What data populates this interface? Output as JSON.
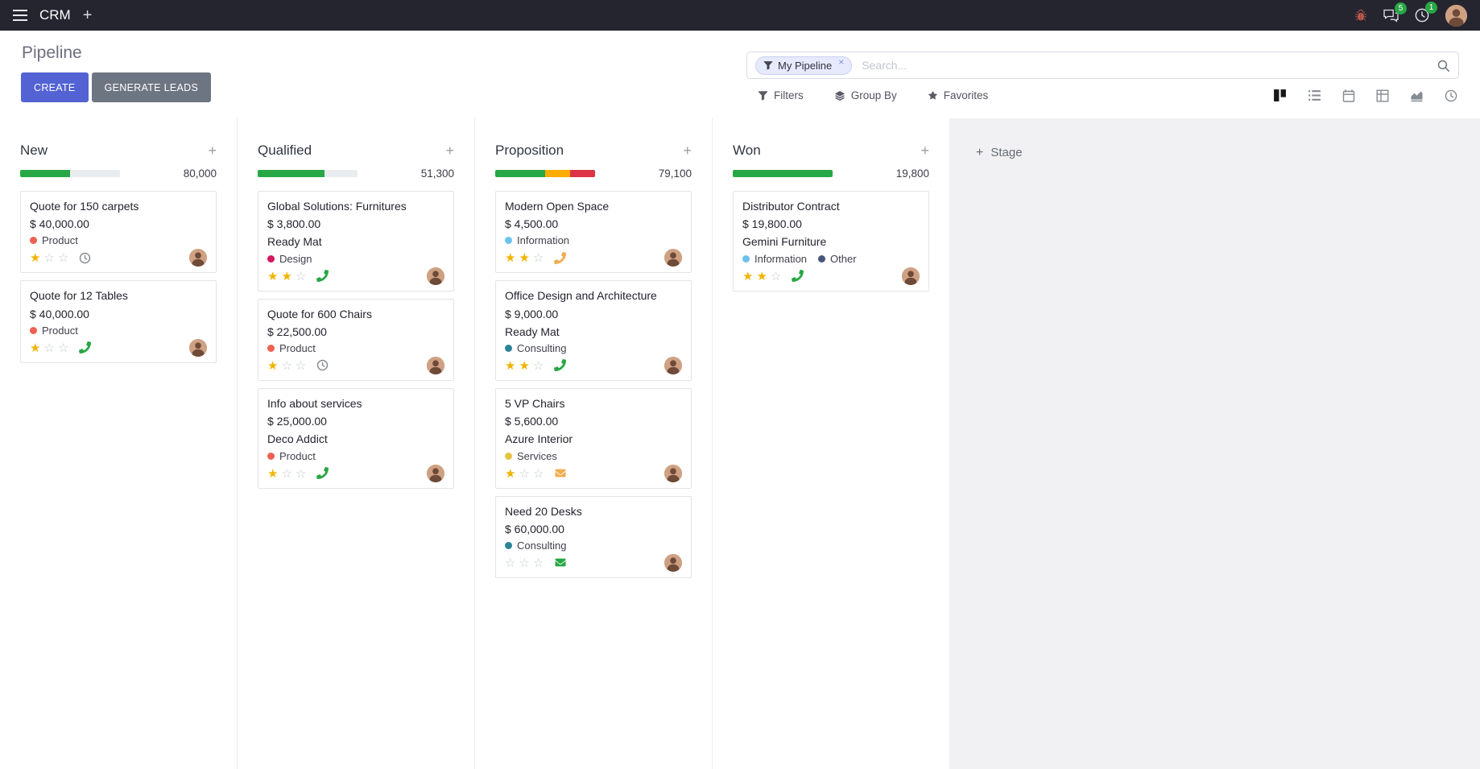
{
  "icons": {
    "plus": "+",
    "close": "×",
    "star_filled": "★",
    "star_empty": "☆"
  },
  "topbar": {
    "app_name": "CRM",
    "messages_badge": "5",
    "activities_badge": "1"
  },
  "control_panel": {
    "title": "Pipeline",
    "buttons": {
      "create": "CREATE",
      "generate_leads": "GENERATE LEADS"
    },
    "search": {
      "facet_label": "My Pipeline",
      "placeholder": "Search..."
    },
    "menus": [
      {
        "label": "Filters"
      },
      {
        "label": "Group By"
      },
      {
        "label": "Favorites"
      }
    ]
  },
  "board": {
    "add_stage_label": "Stage",
    "columns": [
      {
        "name": "New",
        "total": "80,000",
        "progress": [
          {
            "color": "#28a745",
            "pct": 50
          }
        ],
        "cards": [
          {
            "title": "Quote for 150 carpets",
            "amount": "$ 40,000.00",
            "partner": "",
            "tags": [
              {
                "label": "Product",
                "color": "#F06050"
              }
            ],
            "stars": 1,
            "activity": {
              "icon": "clock",
              "color": "#8a8f98"
            }
          },
          {
            "title": "Quote for 12 Tables",
            "amount": "$ 40,000.00",
            "partner": "",
            "tags": [
              {
                "label": "Product",
                "color": "#F06050"
              }
            ],
            "stars": 1,
            "activity": {
              "icon": "phone",
              "color": "#28a745"
            }
          }
        ]
      },
      {
        "name": "Qualified",
        "total": "51,300",
        "progress": [
          {
            "color": "#28a745",
            "pct": 66.7
          }
        ],
        "cards": [
          {
            "title": "Global Solutions: Furnitures",
            "amount": "$ 3,800.00",
            "partner": "Ready Mat",
            "tags": [
              {
                "label": "Design",
                "color": "#D6145F"
              }
            ],
            "stars": 2,
            "activity": {
              "icon": "phone",
              "color": "#28a745"
            }
          },
          {
            "title": "Quote for 600 Chairs",
            "amount": "$ 22,500.00",
            "partner": "",
            "tags": [
              {
                "label": "Product",
                "color": "#F06050"
              }
            ],
            "stars": 1,
            "activity": {
              "icon": "clock",
              "color": "#8a8f98"
            }
          },
          {
            "title": "Info about services",
            "amount": "$ 25,000.00",
            "partner": "Deco Addict",
            "tags": [
              {
                "label": "Product",
                "color": "#F06050"
              }
            ],
            "stars": 1,
            "activity": {
              "icon": "phone",
              "color": "#28a745"
            }
          }
        ]
      },
      {
        "name": "Proposition",
        "total": "79,100",
        "progress": [
          {
            "color": "#28a745",
            "pct": 50
          },
          {
            "color": "#ffac00",
            "pct": 25
          },
          {
            "color": "#dc3545",
            "pct": 25
          }
        ],
        "cards": [
          {
            "title": "Modern Open Space",
            "amount": "$ 4,500.00",
            "partner": "",
            "tags": [
              {
                "label": "Information",
                "color": "#6CC1ED"
              }
            ],
            "stars": 2,
            "activity": {
              "icon": "phone",
              "color": "#f0ad4e"
            }
          },
          {
            "title": "Office Design and Architecture",
            "amount": "$ 9,000.00",
            "partner": "Ready Mat",
            "tags": [
              {
                "label": "Consulting",
                "color": "#2C8397"
              }
            ],
            "stars": 2,
            "activity": {
              "icon": "phone",
              "color": "#28a745"
            }
          },
          {
            "title": "5 VP Chairs",
            "amount": "$ 5,600.00",
            "partner": "Azure Interior",
            "tags": [
              {
                "label": "Services",
                "color": "#E4C441"
              }
            ],
            "stars": 1,
            "activity": {
              "icon": "envelope",
              "color": "#f0ad4e"
            }
          },
          {
            "title": "Need 20 Desks",
            "amount": "$ 60,000.00",
            "partner": "",
            "tags": [
              {
                "label": "Consulting",
                "color": "#2C8397"
              }
            ],
            "stars": 0,
            "activity": {
              "icon": "envelope",
              "color": "#28a745"
            }
          }
        ]
      },
      {
        "name": "Won",
        "total": "19,800",
        "progress": [
          {
            "color": "#28a745",
            "pct": 100
          }
        ],
        "cards": [
          {
            "title": "Distributor Contract",
            "amount": "$ 19,800.00",
            "partner": "Gemini Furniture",
            "tags": [
              {
                "label": "Information",
                "color": "#6CC1ED"
              },
              {
                "label": "Other",
                "color": "#475577"
              }
            ],
            "stars": 2,
            "activity": {
              "icon": "phone",
              "color": "#28a745"
            }
          }
        ]
      }
    ]
  }
}
